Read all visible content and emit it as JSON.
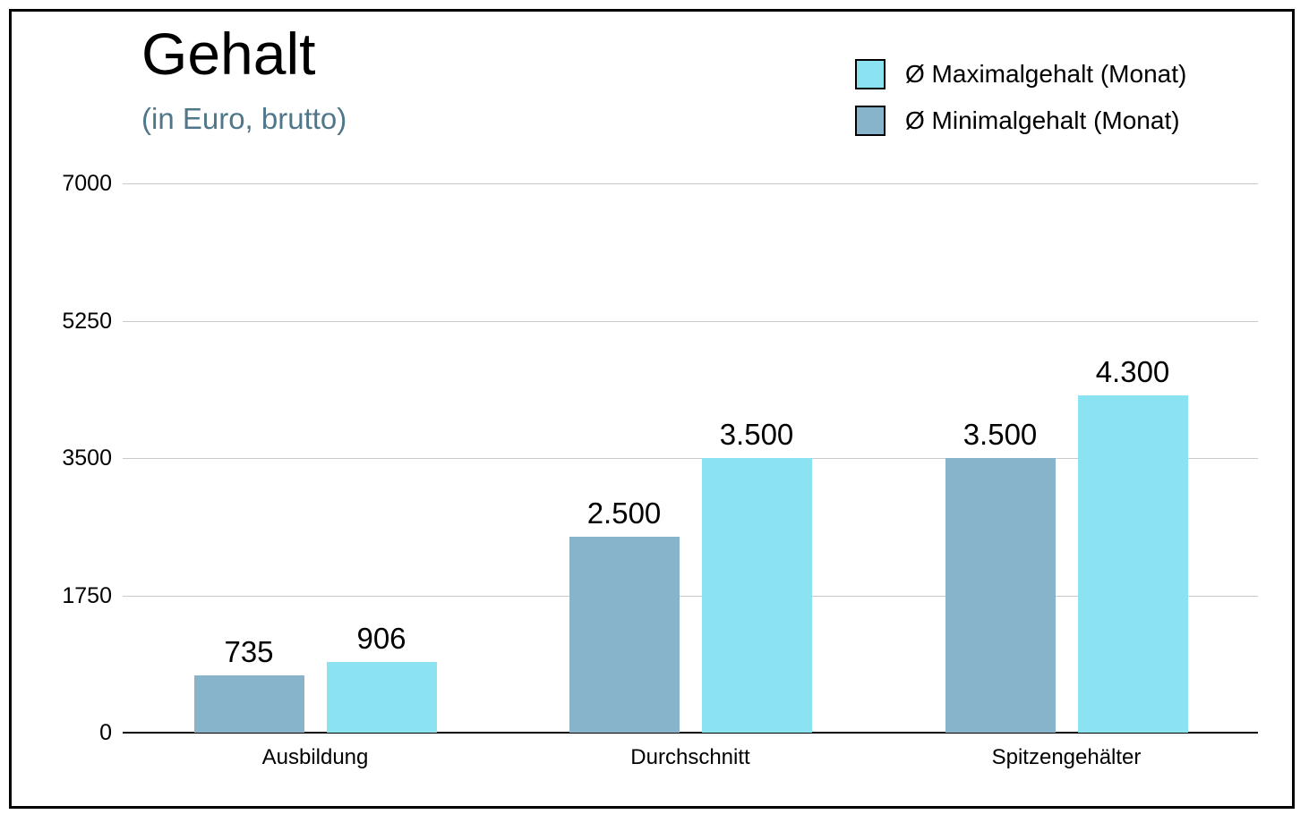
{
  "title": "Gehalt",
  "subtitle": "(in Euro, brutto)",
  "colors": {
    "title": "#000000",
    "subtitle": "#507789",
    "grid": "#C9C9C9",
    "axis": "#000000",
    "max_series": "#8BE2F1",
    "min_series": "#87B4CB"
  },
  "legend": [
    {
      "label": "Ø Maximalgehalt (Monat)",
      "color": "#8BE2F1"
    },
    {
      "label": "Ø Minimalgehalt (Monat)",
      "color": "#87B4CB"
    }
  ],
  "chart_data": {
    "type": "bar",
    "title": "Gehalt",
    "subtitle": "(in Euro, brutto)",
    "categories": [
      "Ausbildung",
      "Durchschnitt",
      "Spitzengehälter"
    ],
    "series": [
      {
        "name": "Ø Minimalgehalt (Monat)",
        "color": "#87B4CB",
        "values": [
          735,
          2500,
          3500
        ],
        "labels": [
          "735",
          "2.500",
          "3.500"
        ]
      },
      {
        "name": "Ø Maximalgehalt (Monat)",
        "color": "#8BE2F1",
        "values": [
          906,
          3500,
          4300
        ],
        "labels": [
          "906",
          "3.500",
          "4.300"
        ]
      }
    ],
    "ylim": [
      0,
      7000
    ],
    "yticks": [
      0,
      1750,
      3500,
      5250,
      7000
    ],
    "ytick_labels": [
      "0",
      "1750",
      "3500",
      "5250",
      "7000"
    ],
    "grid": true,
    "legend_position": "top-right"
  }
}
